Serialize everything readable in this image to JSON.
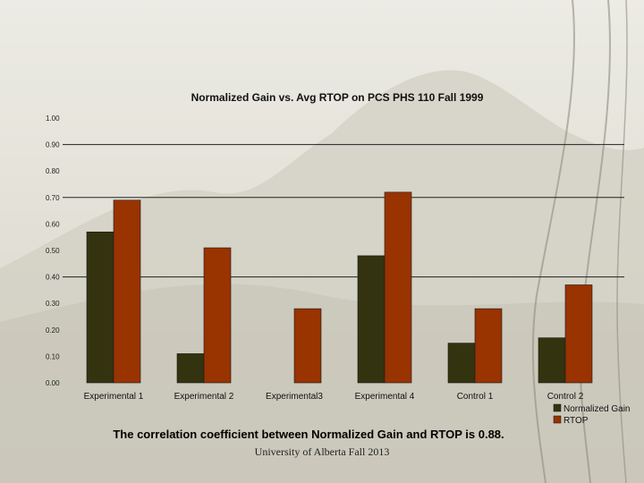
{
  "slide": {
    "caption": "The correlation coefficient between Normalized Gain and RTOP is 0.88.",
    "footer": "University of Alberta Fall 2013"
  },
  "colors": {
    "normalized_gain": "#33330f",
    "rtop": "#993300",
    "gridline": "#222222"
  },
  "chart_data": {
    "type": "bar",
    "title": "Normalized Gain vs. Avg RTOP on PCS PHS 110 Fall 1999",
    "categories": [
      "Experimental 1",
      "Experimental 2",
      "Experimental3",
      "Experimental 4",
      "Control 1",
      "Control 2"
    ],
    "series": [
      {
        "name": "Normalized Gain",
        "values": [
          0.57,
          0.11,
          0.0,
          0.48,
          0.15,
          0.17
        ]
      },
      {
        "name": "RTOP",
        "values": [
          0.69,
          0.51,
          0.28,
          0.72,
          0.28,
          0.37
        ]
      }
    ],
    "ylim": [
      0,
      1
    ],
    "yticks": [
      "0.00",
      "0.10",
      "0.20",
      "0.30",
      "0.40",
      "0.50",
      "0.60",
      "0.70",
      "0.80",
      "0.90",
      "1.00"
    ],
    "gridlines_at": [
      0.4,
      0.7,
      0.9
    ],
    "legend_position": "bottom-right",
    "xlabel": "",
    "ylabel": ""
  }
}
